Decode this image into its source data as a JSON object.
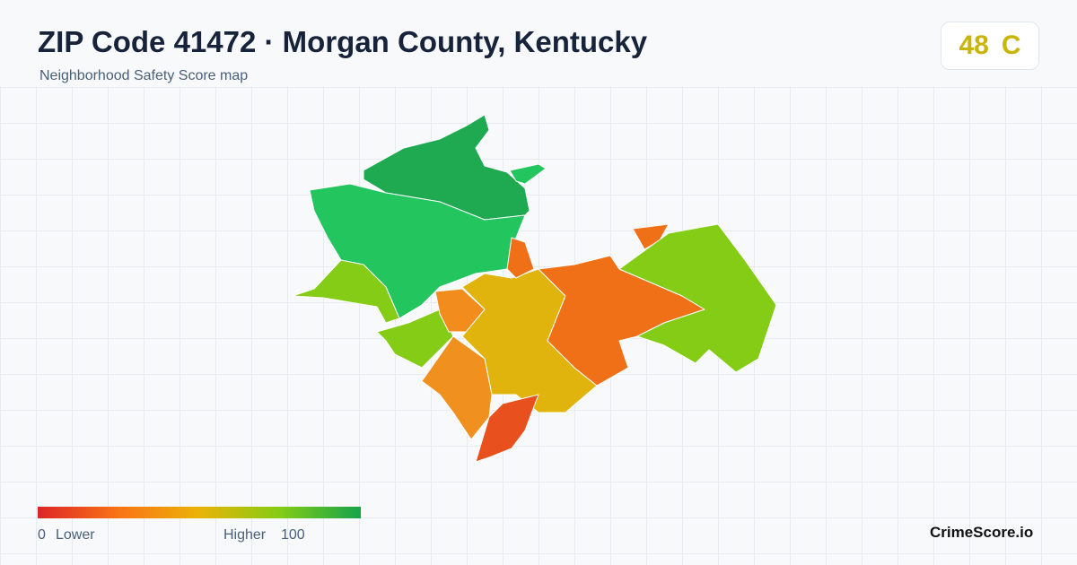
{
  "header": {
    "title": "ZIP Code 41472 · Morgan County, Kentucky",
    "subtitle": "Neighborhood Safety Score map"
  },
  "score": {
    "value": 48,
    "grade": "C"
  },
  "legend": {
    "min": 0,
    "min_label": "Lower",
    "max_label": "Higher",
    "max": 100
  },
  "brand": "CrimeScore.io"
}
